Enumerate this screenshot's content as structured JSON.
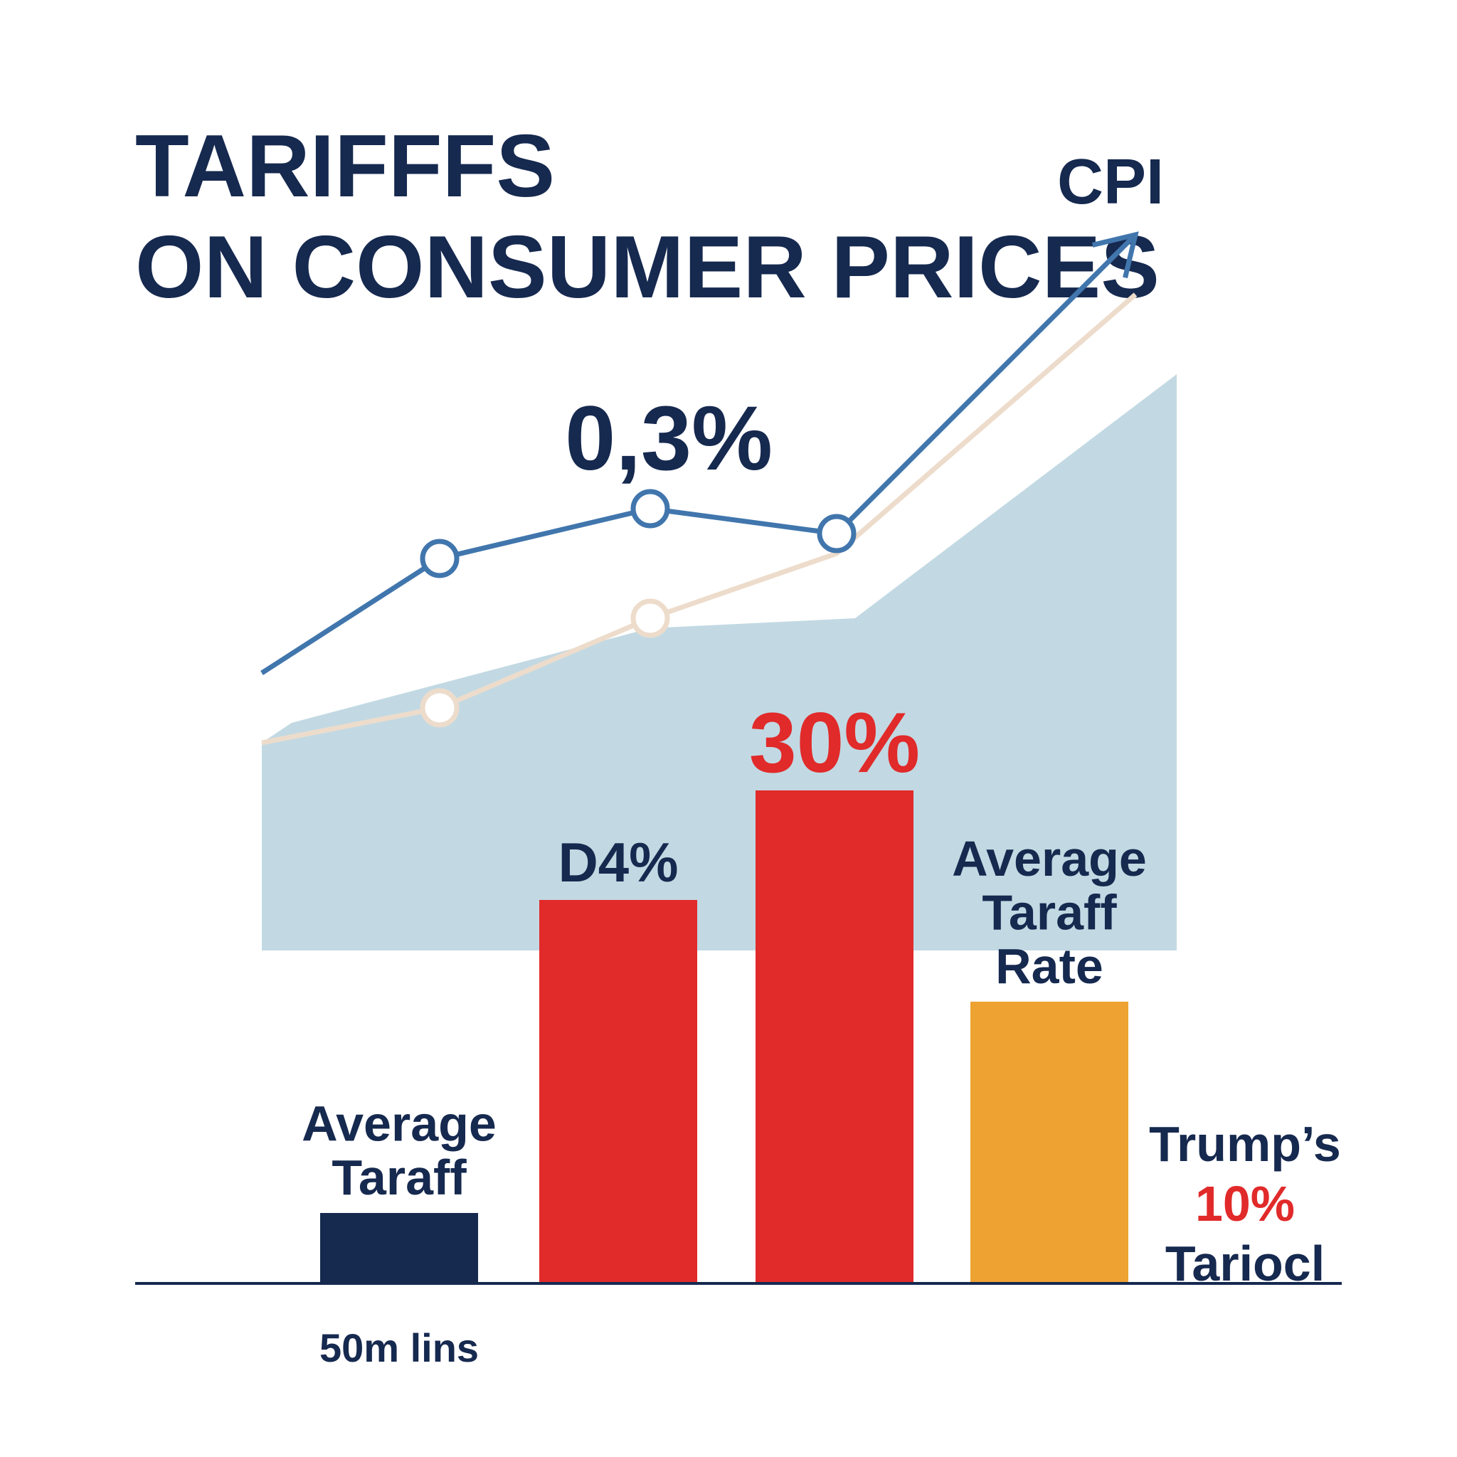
{
  "chart_data": {
    "type": "bar",
    "title_line1": "TARIFFFS",
    "title_line2": "ON CONSUMER PRICES",
    "line_series_label": "CPI",
    "line_annotation": "0,3%",
    "colors": {
      "text": "#16294f",
      "cpi_line": "#4176ad",
      "secondary_line": "#eddccb",
      "area": "#c2d9e3",
      "red": "#e12a2a",
      "navy": "#16294f",
      "orange": "#eea232"
    },
    "bars": [
      {
        "top_label": [
          "Average",
          "Taraff"
        ],
        "value": 9,
        "color": "#16294f",
        "bottom_label": "50m lins"
      },
      {
        "top_label": [
          "D4%"
        ],
        "value": 49,
        "color": "#e12a2a",
        "bottom_label": ""
      },
      {
        "top_label": [
          "30%"
        ],
        "value": 63,
        "color": "#e12a2a",
        "bottom_label": "",
        "top_label_color": "#e12a2a"
      },
      {
        "top_label": [
          "Average",
          "Taraff",
          "Rate"
        ],
        "value": 36,
        "color": "#eea232",
        "bottom_label": ""
      }
    ],
    "side_label": {
      "line1": "Trump’s",
      "line2": "10%",
      "line3": "Tariocl"
    },
    "cpi_line": {
      "values": [
        22,
        45,
        55,
        50,
        110
      ],
      "markers": [
        1,
        2,
        3
      ],
      "arrow": true
    },
    "secondary_line": {
      "values": [
        8,
        15,
        33,
        46,
        98
      ],
      "markers": [
        1,
        2
      ]
    },
    "area": {
      "values": [
        8,
        12,
        31,
        33,
        82
      ]
    }
  }
}
